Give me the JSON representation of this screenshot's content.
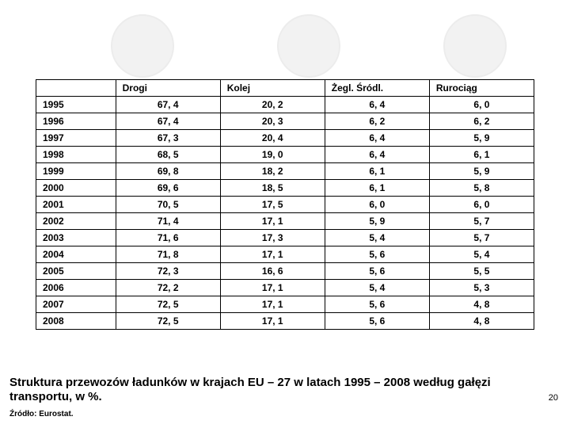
{
  "circles": {
    "bg": "#f2f2f2",
    "border": "#ececec"
  },
  "table": {
    "columns": [
      "Drogi",
      "Kolej",
      "Żegl. Śródl.",
      "Rurociąg"
    ],
    "rows": [
      [
        "1995",
        "67, 4",
        "20, 2",
        "6, 4",
        "6, 0"
      ],
      [
        "1996",
        "67, 4",
        "20, 3",
        "6, 2",
        "6, 2"
      ],
      [
        "1997",
        "67, 3",
        "20, 4",
        "6, 4",
        "5, 9"
      ],
      [
        "1998",
        "68, 5",
        "19, 0",
        "6, 4",
        "6, 1"
      ],
      [
        "1999",
        "69, 8",
        "18, 2",
        "6, 1",
        "5, 9"
      ],
      [
        "2000",
        "69, 6",
        "18, 5",
        "6, 1",
        "5, 8"
      ],
      [
        "2001",
        "70, 5",
        "17, 5",
        "6, 0",
        "6, 0"
      ],
      [
        "2002",
        "71, 4",
        "17, 1",
        "5, 9",
        "5, 7"
      ],
      [
        "2003",
        "71, 6",
        "17, 3",
        "5, 4",
        "5, 7"
      ],
      [
        "2004",
        "71, 8",
        "17, 1",
        "5, 6",
        "5, 4"
      ],
      [
        "2005",
        "72, 3",
        "16, 6",
        "5, 6",
        "5, 5"
      ],
      [
        "2006",
        "72, 2",
        "17, 1",
        "5, 4",
        "5, 3"
      ],
      [
        "2007",
        "72, 5",
        "17, 1",
        "5, 6",
        "4, 8"
      ],
      [
        "2008",
        "72, 5",
        "17, 1",
        "5, 6",
        "4, 8"
      ]
    ]
  },
  "caption": "Struktura przewozów ładunków w krajach EU – 27 w latach 1995 – 2008 według gałęzi transportu, w %.",
  "source": "Źródło: Eurostat.",
  "pagenum": "20"
}
